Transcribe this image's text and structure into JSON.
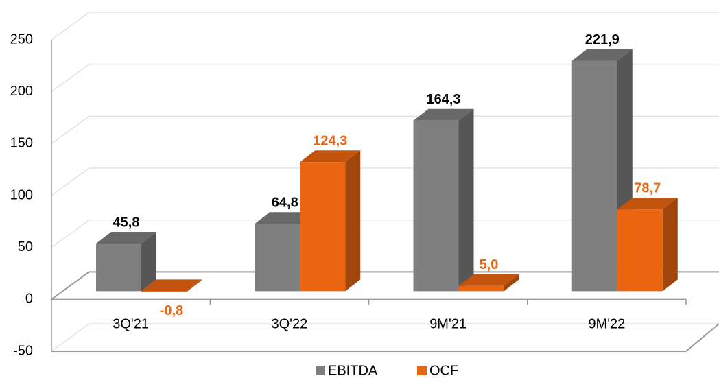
{
  "chart_data": {
    "type": "bar3d",
    "categories": [
      "3Q'21",
      "3Q'22",
      "9M'21",
      "9M'22"
    ],
    "series": [
      {
        "name": "EBITDA",
        "color": "#7f7f7f",
        "values": [
          45.8,
          64.8,
          164.3,
          221.9
        ],
        "value_labels": [
          "45,8",
          "64,8",
          "164,3",
          "221,9"
        ]
      },
      {
        "name": "OCF",
        "color": "#ec6611",
        "values": [
          -0.8,
          124.3,
          5.0,
          78.7
        ],
        "value_labels": [
          "-0,8",
          "124,3",
          "5,0",
          "78,7"
        ]
      }
    ],
    "ylim": [
      -50,
      250
    ],
    "yticks": [
      -50,
      0,
      50,
      100,
      150,
      200,
      250
    ],
    "grid": true,
    "legend": "bottom"
  }
}
